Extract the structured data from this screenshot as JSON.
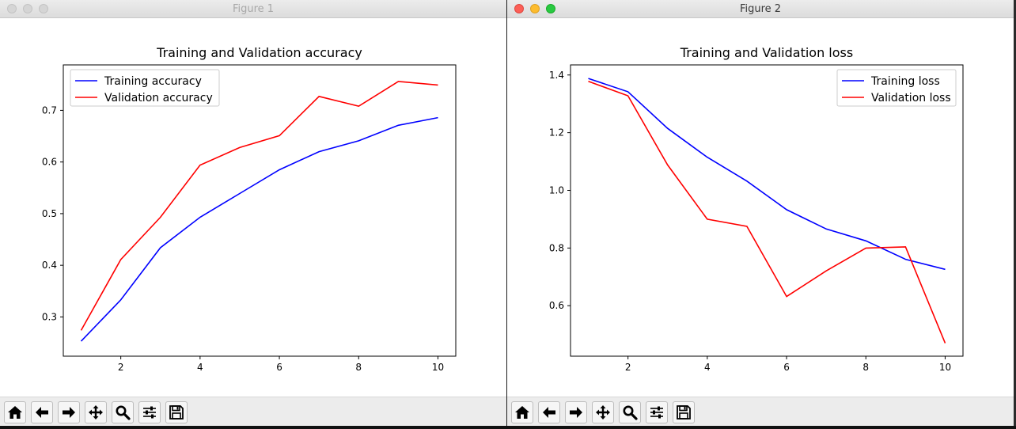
{
  "windows": [
    {
      "title": "Figure 1",
      "active": false,
      "chart_data": {
        "type": "line",
        "title": "Training and Validation accuracy",
        "xlabel": "",
        "ylabel": "",
        "xlim": [
          0.55,
          10.45
        ],
        "ylim": [
          0.224,
          0.788
        ],
        "xticks": [
          2,
          4,
          6,
          8,
          10
        ],
        "yticks": [
          0.3,
          0.4,
          0.5,
          0.6,
          0.7
        ],
        "legend_position": "upper-left",
        "x": [
          1,
          2,
          3,
          4,
          5,
          6,
          7,
          8,
          9,
          10
        ],
        "series": [
          {
            "name": "Training accuracy",
            "color": "#0000ff",
            "values": [
              0.253,
              0.333,
              0.434,
              0.493,
              0.539,
              0.585,
              0.62,
              0.641,
              0.671,
              0.686
            ]
          },
          {
            "name": "Validation accuracy",
            "color": "#ff0000",
            "values": [
              0.274,
              0.411,
              0.493,
              0.594,
              0.628,
              0.651,
              0.727,
              0.708,
              0.756,
              0.749
            ]
          }
        ]
      }
    },
    {
      "title": "Figure 2",
      "active": true,
      "chart_data": {
        "type": "line",
        "title": "Training and Validation loss",
        "xlabel": "",
        "ylabel": "",
        "xlim": [
          0.55,
          10.45
        ],
        "ylim": [
          0.425,
          1.435
        ],
        "xticks": [
          2,
          4,
          6,
          8,
          10
        ],
        "yticks": [
          0.6,
          0.8,
          1.0,
          1.2,
          1.4
        ],
        "legend_position": "upper-right",
        "x": [
          1,
          2,
          3,
          4,
          5,
          6,
          7,
          8,
          9,
          10
        ],
        "series": [
          {
            "name": "Training loss",
            "color": "#0000ff",
            "values": [
              1.388,
              1.342,
              1.215,
              1.115,
              1.032,
              0.933,
              0.866,
              0.825,
              0.761,
              0.726
            ]
          },
          {
            "name": "Validation loss",
            "color": "#ff0000",
            "values": [
              1.378,
              1.328,
              1.088,
              0.9,
              0.875,
              0.632,
              0.721,
              0.8,
              0.804,
              0.47
            ]
          }
        ]
      }
    }
  ],
  "toolbar_buttons": [
    {
      "name": "home",
      "icon": "home-icon"
    },
    {
      "name": "back",
      "icon": "arrow-left-icon"
    },
    {
      "name": "forward",
      "icon": "arrow-right-icon"
    },
    {
      "name": "pan",
      "icon": "move-icon"
    },
    {
      "name": "zoom",
      "icon": "zoom-icon"
    },
    {
      "name": "configure-subplots",
      "icon": "sliders-icon"
    },
    {
      "name": "save",
      "icon": "save-icon"
    }
  ]
}
